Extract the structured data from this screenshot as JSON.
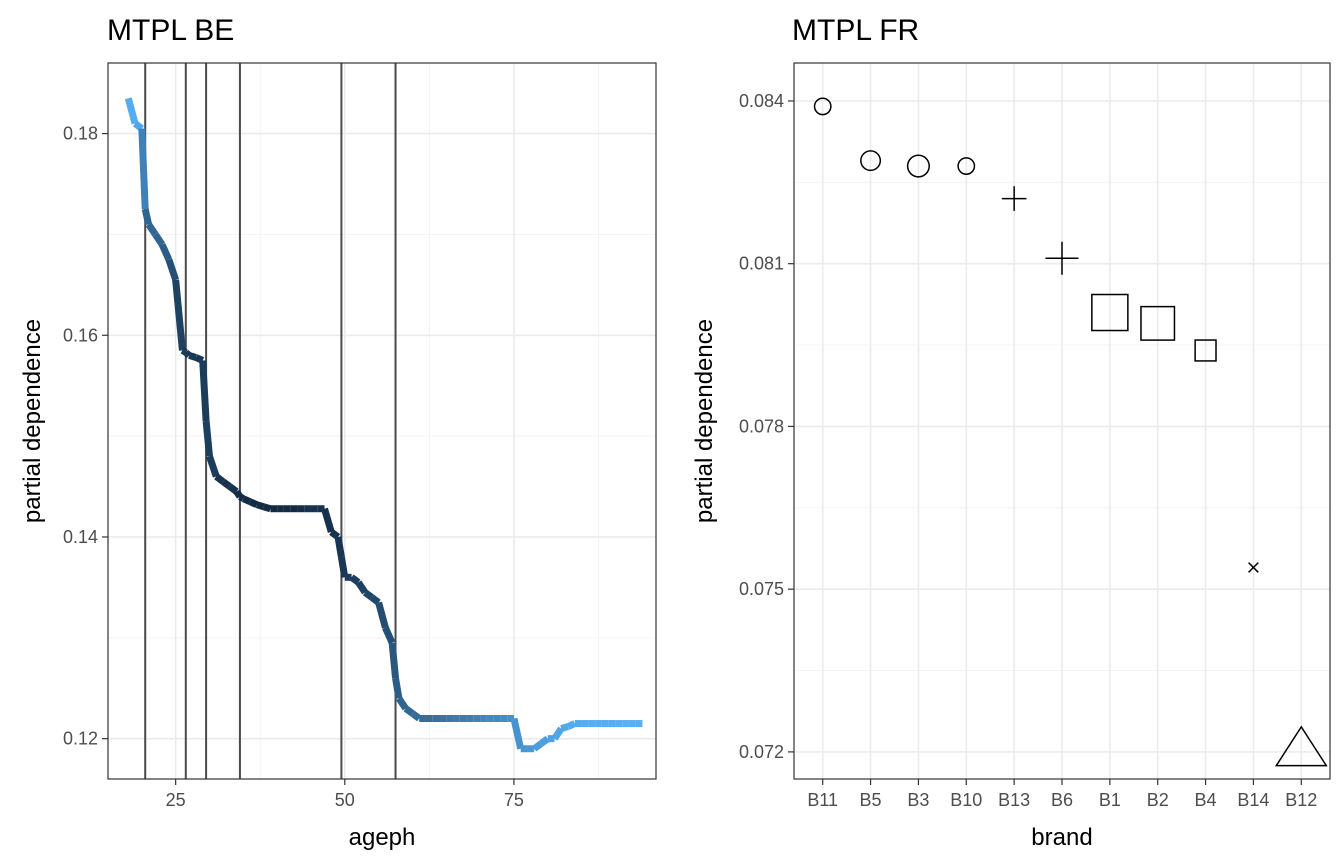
{
  "chart_data": [
    {
      "type": "line",
      "title": "MTPL BE",
      "xlabel": "ageph",
      "ylabel": "partial dependence",
      "xlim": [
        15,
        96
      ],
      "ylim": [
        0.116,
        0.187
      ],
      "x_ticks": [
        25,
        50,
        75
      ],
      "y_ticks": [
        0.12,
        0.14,
        0.16,
        0.18
      ],
      "x_tick_labels": [
        "25",
        "50",
        "75"
      ],
      "y_tick_labels": [
        "0.12",
        "0.14",
        "0.16",
        "0.18"
      ],
      "grid": true,
      "vertical_lines": [
        20.5,
        26.5,
        29.5,
        34.5,
        49.5,
        57.5
      ],
      "color_scale": {
        "low": "#132b43",
        "high": "#56b1f7"
      },
      "x": [
        18,
        19,
        20,
        20.5,
        21,
        22,
        23,
        24,
        25,
        26,
        26.5,
        27,
        28,
        29,
        29.5,
        30,
        31,
        32,
        33,
        34,
        34.5,
        35,
        36,
        37,
        38,
        39,
        40,
        41,
        42,
        43,
        44,
        45,
        46,
        47,
        48,
        49,
        49.5,
        50,
        51,
        52,
        53,
        54,
        55,
        56,
        57,
        57.5,
        58,
        59,
        60,
        61,
        62,
        63,
        64,
        65,
        66,
        67,
        68,
        69,
        70,
        71,
        72,
        73,
        74,
        75,
        76,
        77,
        78,
        79,
        80,
        81,
        82,
        83,
        84,
        85,
        86,
        87,
        88,
        89,
        90,
        91,
        92,
        93,
        94
      ],
      "y": [
        0.1835,
        0.181,
        0.1805,
        0.1725,
        0.171,
        0.17,
        0.169,
        0.1675,
        0.1655,
        0.1585,
        0.1583,
        0.158,
        0.1578,
        0.1575,
        0.1515,
        0.148,
        0.146,
        0.1455,
        0.145,
        0.1445,
        0.144,
        0.1438,
        0.1435,
        0.1432,
        0.143,
        0.1428,
        0.1428,
        0.1428,
        0.1428,
        0.1428,
        0.1428,
        0.1428,
        0.1428,
        0.1428,
        0.1405,
        0.14,
        0.138,
        0.136,
        0.136,
        0.1355,
        0.1345,
        0.134,
        0.1335,
        0.131,
        0.1295,
        0.126,
        0.124,
        0.123,
        0.1225,
        0.122,
        0.122,
        0.122,
        0.122,
        0.122,
        0.122,
        0.122,
        0.122,
        0.122,
        0.122,
        0.122,
        0.122,
        0.122,
        0.122,
        0.122,
        0.119,
        0.119,
        0.119,
        0.1195,
        0.12,
        0.12,
        0.121,
        0.1212,
        0.1215,
        0.1215,
        0.1215,
        0.1215,
        0.1215,
        0.1215,
        0.1215,
        0.1215,
        0.1215,
        0.1215,
        0.1215
      ],
      "w": [
        0.02,
        0.05,
        0.1,
        0.6,
        0.55,
        0.55,
        0.6,
        0.65,
        0.8,
        0.85,
        0.9,
        0.9,
        0.9,
        0.9,
        0.85,
        0.85,
        0.9,
        0.95,
        0.95,
        0.95,
        1,
        1,
        1,
        1,
        1,
        1,
        1,
        1,
        1,
        1,
        0.95,
        0.95,
        0.95,
        0.95,
        0.95,
        0.95,
        0.9,
        0.9,
        0.85,
        0.85,
        0.8,
        0.8,
        0.75,
        0.75,
        0.7,
        0.65,
        0.6,
        0.55,
        0.55,
        0.5,
        0.5,
        0.5,
        0.45,
        0.45,
        0.4,
        0.4,
        0.4,
        0.35,
        0.35,
        0.3,
        0.3,
        0.3,
        0.25,
        0.25,
        0.2,
        0.2,
        0.15,
        0.15,
        0.12,
        0.1,
        0.08,
        0.06,
        0.05,
        0.04,
        0.03,
        0.02,
        0.02,
        0.02,
        0.02,
        0.01,
        0.01,
        0.01,
        0.01
      ]
    },
    {
      "type": "scatter",
      "title": "MTPL FR",
      "xlabel": "brand",
      "ylabel": "partial dependence",
      "ylim": [
        0.0715,
        0.0847
      ],
      "y_ticks": [
        0.072,
        0.075,
        0.078,
        0.081,
        0.084
      ],
      "y_tick_labels": [
        "0.072",
        "0.075",
        "0.078",
        "0.081",
        "0.084"
      ],
      "grid": true,
      "categories": [
        "B11",
        "B5",
        "B3",
        "B10",
        "B13",
        "B6",
        "B1",
        "B2",
        "B4",
        "B14",
        "B12"
      ],
      "values": [
        0.0839,
        0.0829,
        0.0828,
        0.0828,
        0.0822,
        0.0811,
        0.0801,
        0.0799,
        0.0794,
        0.0754,
        0.072
      ],
      "shapes": [
        "circle",
        "circle",
        "circle",
        "circle",
        "plus",
        "plus",
        "square",
        "square",
        "square",
        "cross",
        "triangle"
      ],
      "weights": [
        0.35,
        0.5,
        0.6,
        0.35,
        0.45,
        0.75,
        1.0,
        0.9,
        0.4,
        0.2,
        1.0
      ]
    }
  ]
}
